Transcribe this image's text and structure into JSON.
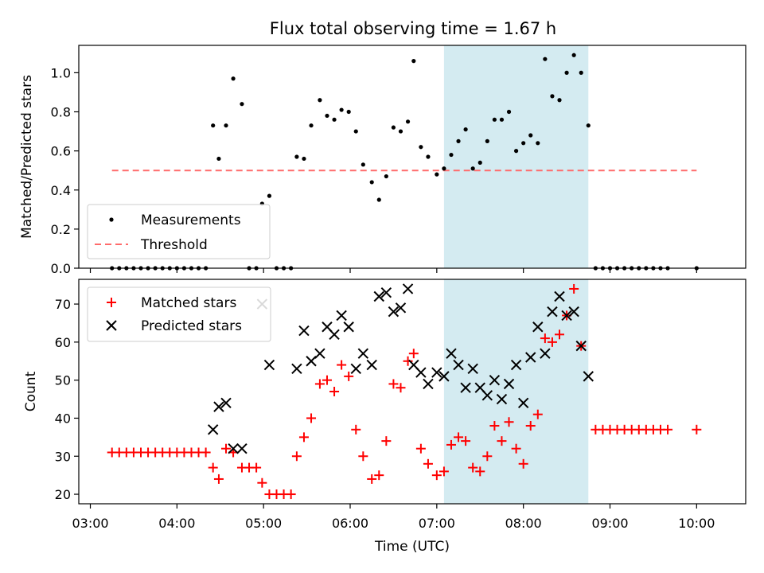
{
  "figure": {
    "title": "Flux total observing time = 1.67 h",
    "xlabel": "Time (UTC)",
    "xticks": [
      "03:00",
      "04:00",
      "05:00",
      "06:00",
      "07:00",
      "08:00",
      "09:00",
      "10:00"
    ],
    "highlight_color": "#d4ebf1"
  },
  "chart_data": [
    {
      "type": "scatter",
      "ylabel": "Matched/Predicted stars",
      "xlim": [
        "02:52",
        "10:34"
      ],
      "ylim": [
        0,
        1.14
      ],
      "yticks": [
        "0.0",
        "0.2",
        "0.4",
        "0.6",
        "0.8",
        "1.0"
      ],
      "highlight_span": [
        "07:05",
        "08:45"
      ],
      "legend": {
        "placement": "lower-left",
        "entries": [
          "Measurements",
          "Threshold"
        ]
      },
      "threshold": {
        "name": "Threshold",
        "y": 0.5,
        "x": [
          "03:15",
          "10:00"
        ],
        "color": "#ff6b6b"
      },
      "series": [
        {
          "name": "Measurements",
          "color": "#000000",
          "points": [
            [
              "03:15",
              0
            ],
            [
              "03:20",
              0
            ],
            [
              "03:25",
              0
            ],
            [
              "03:30",
              0
            ],
            [
              "03:35",
              0
            ],
            [
              "03:40",
              0
            ],
            [
              "03:45",
              0
            ],
            [
              "03:50",
              0
            ],
            [
              "03:55",
              0
            ],
            [
              "04:00",
              0
            ],
            [
              "04:05",
              0
            ],
            [
              "04:10",
              0
            ],
            [
              "04:15",
              0
            ],
            [
              "04:20",
              0
            ],
            [
              "04:25",
              0.73
            ],
            [
              "04:29",
              0.56
            ],
            [
              "04:34",
              0.73
            ],
            [
              "04:39",
              0.97
            ],
            [
              "04:45",
              0.84
            ],
            [
              "04:50",
              0
            ],
            [
              "04:55",
              0
            ],
            [
              "04:59",
              0.33
            ],
            [
              "05:04",
              0.37
            ],
            [
              "05:09",
              0
            ],
            [
              "05:14",
              0
            ],
            [
              "05:19",
              0
            ],
            [
              "05:23",
              0.57
            ],
            [
              "05:28",
              0.56
            ],
            [
              "05:33",
              0.73
            ],
            [
              "05:39",
              0.86
            ],
            [
              "05:44",
              0.78
            ],
            [
              "05:49",
              0.76
            ],
            [
              "05:54",
              0.81
            ],
            [
              "05:59",
              0.8
            ],
            [
              "06:04",
              0.7
            ],
            [
              "06:09",
              0.53
            ],
            [
              "06:15",
              0.44
            ],
            [
              "06:20",
              0.35
            ],
            [
              "06:25",
              0.47
            ],
            [
              "06:30",
              0.72
            ],
            [
              "06:35",
              0.7
            ],
            [
              "06:40",
              0.75
            ],
            [
              "06:44",
              1.06
            ],
            [
              "06:49",
              0.62
            ],
            [
              "06:54",
              0.57
            ],
            [
              "07:00",
              0.48
            ],
            [
              "07:05",
              0.51
            ],
            [
              "07:10",
              0.58
            ],
            [
              "07:15",
              0.65
            ],
            [
              "07:20",
              0.71
            ],
            [
              "07:25",
              0.51
            ],
            [
              "07:30",
              0.54
            ],
            [
              "07:35",
              0.65
            ],
            [
              "07:40",
              0.76
            ],
            [
              "07:45",
              0.76
            ],
            [
              "07:50",
              0.8
            ],
            [
              "07:55",
              0.6
            ],
            [
              "08:00",
              0.64
            ],
            [
              "08:05",
              0.68
            ],
            [
              "08:10",
              0.64
            ],
            [
              "08:15",
              1.07
            ],
            [
              "08:20",
              0.88
            ],
            [
              "08:25",
              0.86
            ],
            [
              "08:30",
              1.0
            ],
            [
              "08:35",
              1.09
            ],
            [
              "08:40",
              1.0
            ],
            [
              "08:45",
              0.73
            ],
            [
              "08:50",
              0
            ],
            [
              "08:55",
              0
            ],
            [
              "09:00",
              0
            ],
            [
              "09:05",
              0
            ],
            [
              "09:10",
              0
            ],
            [
              "09:15",
              0
            ],
            [
              "09:20",
              0
            ],
            [
              "09:25",
              0
            ],
            [
              "09:30",
              0
            ],
            [
              "09:35",
              0
            ],
            [
              "09:40",
              0
            ],
            [
              "10:00",
              0
            ]
          ]
        }
      ]
    },
    {
      "type": "scatter",
      "ylabel": "Count",
      "xlim": [
        "02:52",
        "10:34"
      ],
      "ylim": [
        17.5,
        76.5
      ],
      "yticks": [
        "20",
        "30",
        "40",
        "50",
        "60",
        "70"
      ],
      "highlight_span": [
        "07:05",
        "08:45"
      ],
      "legend": {
        "placement": "upper-left",
        "entries": [
          "Matched stars",
          "Predicted stars"
        ]
      },
      "series": [
        {
          "name": "Matched stars",
          "marker": "plus",
          "color": "#ff0000",
          "points": [
            [
              "03:15",
              31
            ],
            [
              "03:20",
              31
            ],
            [
              "03:25",
              31
            ],
            [
              "03:30",
              31
            ],
            [
              "03:35",
              31
            ],
            [
              "03:40",
              31
            ],
            [
              "03:45",
              31
            ],
            [
              "03:50",
              31
            ],
            [
              "03:55",
              31
            ],
            [
              "04:00",
              31
            ],
            [
              "04:05",
              31
            ],
            [
              "04:10",
              31
            ],
            [
              "04:15",
              31
            ],
            [
              "04:20",
              31
            ],
            [
              "04:25",
              27
            ],
            [
              "04:29",
              24
            ],
            [
              "04:34",
              32
            ],
            [
              "04:39",
              31
            ],
            [
              "04:45",
              27
            ],
            [
              "04:50",
              27
            ],
            [
              "04:55",
              27
            ],
            [
              "04:59",
              23
            ],
            [
              "05:04",
              20
            ],
            [
              "05:09",
              20
            ],
            [
              "05:14",
              20
            ],
            [
              "05:19",
              20
            ],
            [
              "05:23",
              30
            ],
            [
              "05:28",
              35
            ],
            [
              "05:33",
              40
            ],
            [
              "05:39",
              49
            ],
            [
              "05:44",
              50
            ],
            [
              "05:49",
              47
            ],
            [
              "05:54",
              54
            ],
            [
              "05:59",
              51
            ],
            [
              "06:04",
              37
            ],
            [
              "06:09",
              30
            ],
            [
              "06:15",
              24
            ],
            [
              "06:20",
              25
            ],
            [
              "06:25",
              34
            ],
            [
              "06:30",
              49
            ],
            [
              "06:35",
              48
            ],
            [
              "06:40",
              55
            ],
            [
              "06:44",
              57
            ],
            [
              "06:49",
              32
            ],
            [
              "06:54",
              28
            ],
            [
              "07:00",
              25
            ],
            [
              "07:05",
              26
            ],
            [
              "07:10",
              33
            ],
            [
              "07:15",
              35
            ],
            [
              "07:20",
              34
            ],
            [
              "07:25",
              27
            ],
            [
              "07:30",
              26
            ],
            [
              "07:35",
              30
            ],
            [
              "07:40",
              38
            ],
            [
              "07:45",
              34
            ],
            [
              "07:50",
              39
            ],
            [
              "07:55",
              32
            ],
            [
              "08:00",
              28
            ],
            [
              "08:05",
              38
            ],
            [
              "08:10",
              41
            ],
            [
              "08:15",
              61
            ],
            [
              "08:20",
              60
            ],
            [
              "08:25",
              62
            ],
            [
              "08:30",
              67
            ],
            [
              "08:35",
              74
            ],
            [
              "08:40",
              59
            ],
            [
              "08:50",
              37
            ],
            [
              "08:55",
              37
            ],
            [
              "09:00",
              37
            ],
            [
              "09:05",
              37
            ],
            [
              "09:10",
              37
            ],
            [
              "09:15",
              37
            ],
            [
              "09:20",
              37
            ],
            [
              "09:25",
              37
            ],
            [
              "09:30",
              37
            ],
            [
              "09:35",
              37
            ],
            [
              "09:40",
              37
            ],
            [
              "10:00",
              37
            ]
          ]
        },
        {
          "name": "Predicted stars",
          "marker": "x",
          "color": "#000000",
          "points": [
            [
              "04:25",
              37
            ],
            [
              "04:29",
              43
            ],
            [
              "04:34",
              44
            ],
            [
              "04:39",
              32
            ],
            [
              "04:45",
              32
            ],
            [
              "04:59",
              70
            ],
            [
              "05:04",
              54
            ],
            [
              "05:23",
              53
            ],
            [
              "05:28",
              63
            ],
            [
              "05:33",
              55
            ],
            [
              "05:39",
              57
            ],
            [
              "05:44",
              64
            ],
            [
              "05:49",
              62
            ],
            [
              "05:54",
              67
            ],
            [
              "05:59",
              64
            ],
            [
              "06:04",
              53
            ],
            [
              "06:09",
              57
            ],
            [
              "06:15",
              54
            ],
            [
              "06:20",
              72
            ],
            [
              "06:25",
              73
            ],
            [
              "06:30",
              68
            ],
            [
              "06:35",
              69
            ],
            [
              "06:40",
              74
            ],
            [
              "06:44",
              54
            ],
            [
              "06:49",
              52
            ],
            [
              "06:54",
              49
            ],
            [
              "07:00",
              52
            ],
            [
              "07:05",
              51
            ],
            [
              "07:10",
              57
            ],
            [
              "07:15",
              54
            ],
            [
              "07:20",
              48
            ],
            [
              "07:25",
              53
            ],
            [
              "07:30",
              48
            ],
            [
              "07:35",
              46
            ],
            [
              "07:40",
              50
            ],
            [
              "07:45",
              45
            ],
            [
              "07:50",
              49
            ],
            [
              "07:55",
              54
            ],
            [
              "08:00",
              44
            ],
            [
              "08:05",
              56
            ],
            [
              "08:10",
              64
            ],
            [
              "08:15",
              57
            ],
            [
              "08:20",
              68
            ],
            [
              "08:25",
              72
            ],
            [
              "08:30",
              67
            ],
            [
              "08:35",
              68
            ],
            [
              "08:40",
              59
            ],
            [
              "08:45",
              51
            ]
          ]
        }
      ]
    }
  ]
}
